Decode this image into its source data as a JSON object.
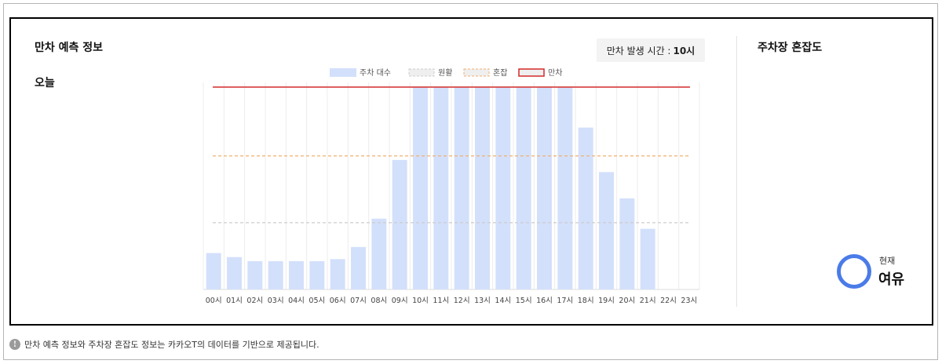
{
  "left_panel": {
    "section_title": "만차 예측 정보",
    "today_label": "오늘",
    "full_time_label": "만차 발생 시간 :",
    "full_time_value": "10시"
  },
  "right_panel": {
    "title": "주차장 혼잡도",
    "status_caption": "현재",
    "status_value": "여유",
    "status_color": "#4a7be8"
  },
  "footer": {
    "info_icon": "info-icon",
    "text": "만차 예측 정보와 주차장 혼잡도 정보는 카카오T의 데이터를 기반으로 제공됩니다."
  },
  "chart_data": {
    "type": "bar",
    "categories": [
      "00시",
      "01시",
      "02시",
      "03시",
      "04시",
      "05시",
      "06시",
      "07시",
      "08시",
      "09시",
      "10시",
      "11시",
      "12시",
      "13시",
      "14시",
      "15시",
      "16시",
      "17시",
      "18시",
      "19시",
      "20시",
      "21시",
      "22시",
      "23시"
    ],
    "series": [
      {
        "name": "주차 대수",
        "color": "#d3e0fb",
        "values": [
          18,
          16,
          14,
          14,
          14,
          14,
          15,
          21,
          35,
          64,
          100,
          100,
          100,
          100,
          100,
          100,
          100,
          100,
          80,
          58,
          45,
          30,
          0,
          0
        ]
      }
    ],
    "thresholds": [
      {
        "name": "원활",
        "value": 33,
        "color": "#cccccc",
        "style": "dashed"
      },
      {
        "name": "혼잡",
        "value": 66,
        "color": "#f0b070",
        "style": "dashed"
      },
      {
        "name": "만차",
        "value": 100,
        "color": "#d42a2a",
        "style": "solid"
      }
    ],
    "ylim": [
      0,
      100
    ],
    "grid": "vertical",
    "legend_position": "top-center"
  }
}
